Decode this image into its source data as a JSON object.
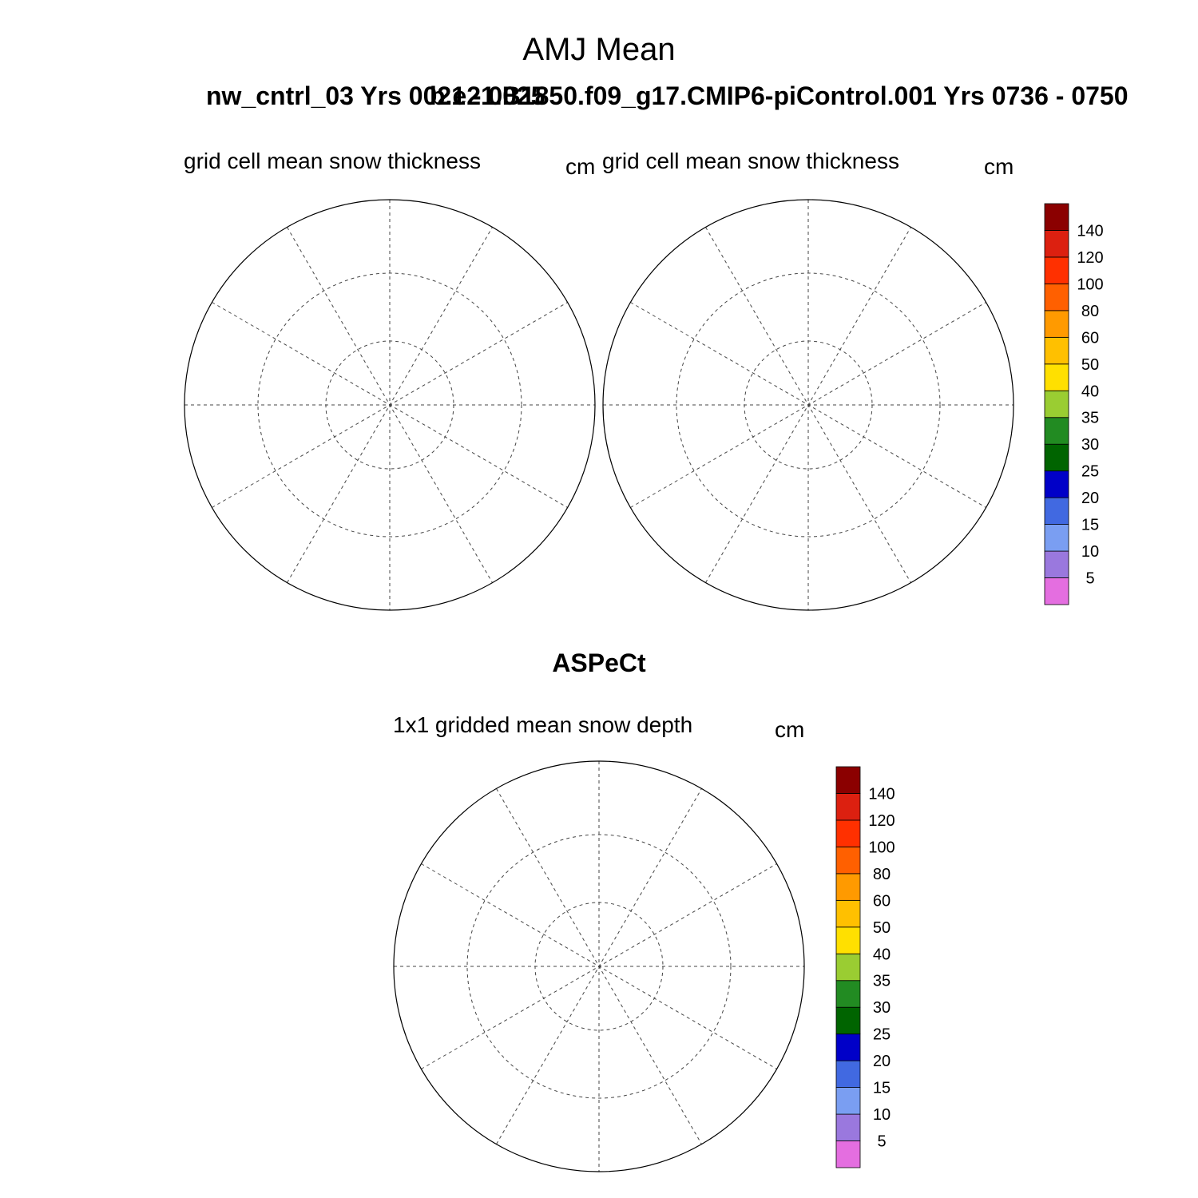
{
  "title": "AMJ Mean",
  "case_left": "nw_cntrl_03  Yrs 0021 - 0025",
  "case_right": "b.e21.B1850.f09_g17.CMIP6-piControl.001  Yrs 0736 - 0750",
  "panels": [
    {
      "id": "model-left",
      "title": "grid cell mean snow thickness",
      "units": "cm"
    },
    {
      "id": "model-right",
      "title": "grid cell mean snow thickness",
      "units": "cm"
    },
    {
      "id": "observations",
      "title": "1x1 gridded mean snow depth",
      "units": "cm"
    }
  ],
  "obs_header": "ASPeCt",
  "colorbar": {
    "levels": [
      "5",
      "10",
      "15",
      "20",
      "25",
      "30",
      "35",
      "40",
      "50",
      "60",
      "80",
      "100",
      "120",
      "140"
    ],
    "colors": [
      "#e46ee0",
      "#9a78de",
      "#7a9ef2",
      "#4169e1",
      "#0000c8",
      "#006400",
      "#228b22",
      "#9acd32",
      "#ffe000",
      "#ffc000",
      "#ff9a00",
      "#ff6000",
      "#ff3000",
      "#dc2010",
      "#8b0000"
    ]
  },
  "map": {
    "projection": "south polar stereographic",
    "land_color": "#bdbdbd"
  }
}
